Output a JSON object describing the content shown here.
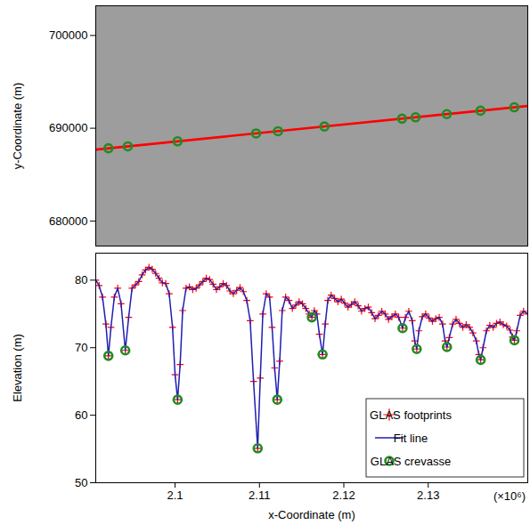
{
  "chart_data": [
    {
      "type": "scatter",
      "ylabel": "y-Coordinate (m)",
      "xlim": [
        2090600,
        2141800
      ],
      "ylim": [
        677300,
        703200
      ],
      "yticks": [
        680000,
        690000,
        700000
      ],
      "tick_labels": "y",
      "grid": false,
      "series": [
        {
          "type": "line",
          "color": "#ff0000",
          "x": [
            2090600,
            2141800
          ],
          "values": [
            687700,
            692400
          ]
        },
        {
          "type": "scatter",
          "color": "#228b22",
          "marker": "circle",
          "x": [
            2092100,
            2094400,
            2100300,
            2109600,
            2112200,
            2117700,
            2126900,
            2128500,
            2132200,
            2136200,
            2140200
          ],
          "values": [
            687840,
            688050,
            688590,
            689440,
            689680,
            690190,
            691030,
            691180,
            691520,
            691890,
            692260
          ]
        }
      ]
    },
    {
      "type": "line",
      "xlabel": "x-Coordinate (m)",
      "ylabel": "Elevation (m)",
      "annotations": [
        "(×10⁶)"
      ],
      "xlim": [
        2090600,
        2141800
      ],
      "ylim": [
        50,
        84
      ],
      "xticks": [
        {
          "value": 2100000,
          "label": "2.1"
        },
        {
          "value": 2110000,
          "label": "2.11"
        },
        {
          "value": 2120000,
          "label": "2.12"
        },
        {
          "value": 2130000,
          "label": "2.13"
        }
      ],
      "yticks": [
        50,
        60,
        70,
        80
      ],
      "grid": false,
      "legend": "lower right",
      "series": [
        {
          "name": "GLAS footprints",
          "type": "scatter",
          "color": "#ff0000",
          "marker": "plus",
          "x": [
            2090600,
            2091000,
            2091400,
            2091800,
            2092100,
            2092400,
            2092800,
            2093200,
            2093600,
            2094100,
            2094500,
            2094900,
            2095300,
            2095700,
            2096100,
            2096500,
            2096900,
            2097300,
            2097700,
            2098100,
            2098500,
            2098900,
            2099300,
            2099700,
            2100000,
            2100300,
            2100600,
            2100900,
            2101300,
            2101700,
            2102100,
            2102500,
            2102900,
            2103300,
            2103700,
            2104100,
            2104500,
            2104900,
            2105300,
            2105700,
            2106100,
            2106500,
            2106900,
            2107300,
            2107700,
            2108100,
            2108500,
            2108900,
            2109300,
            2109790,
            2110100,
            2110400,
            2110800,
            2111200,
            2111500,
            2111800,
            2112110,
            2112400,
            2112700,
            2113100,
            2113500,
            2113900,
            2114300,
            2114700,
            2115100,
            2115500,
            2115900,
            2116210,
            2116500,
            2116800,
            2117100,
            2117480,
            2117800,
            2118100,
            2118500,
            2118900,
            2119300,
            2119700,
            2120100,
            2120500,
            2120900,
            2121300,
            2121700,
            2122100,
            2122500,
            2122900,
            2123300,
            2123700,
            2124100,
            2124500,
            2124900,
            2125300,
            2125700,
            2126100,
            2126500,
            2126960,
            2127300,
            2127700,
            2128100,
            2128400,
            2128640,
            2128900,
            2129300,
            2129700,
            2130100,
            2130500,
            2130900,
            2131300,
            2131700,
            2132000,
            2132220,
            2132500,
            2132900,
            2133300,
            2133700,
            2134100,
            2134500,
            2134900,
            2135300,
            2135700,
            2136000,
            2136220,
            2136500,
            2136900,
            2137300,
            2137700,
            2138100,
            2138500,
            2138900,
            2139300,
            2139700,
            2140000,
            2140220,
            2140500,
            2140900,
            2141300,
            2141800
          ],
          "values": [
            80.0,
            79.2,
            77.5,
            73.5,
            68.8,
            73.0,
            77.5,
            78.8,
            76.5,
            69.6,
            74.5,
            78.8,
            79.3,
            79.8,
            80.8,
            81.5,
            81.9,
            81.6,
            81.0,
            80.3,
            79.6,
            79.5,
            78.0,
            73.0,
            66.0,
            62.3,
            67.5,
            75.5,
            78.8,
            79.0,
            78.6,
            78.8,
            79.3,
            79.8,
            80.3,
            80.1,
            79.4,
            78.6,
            79.0,
            79.5,
            79.2,
            78.4,
            78.0,
            78.5,
            78.9,
            78.3,
            77.0,
            74.0,
            65.0,
            55.1,
            65.5,
            75.0,
            78.0,
            77.5,
            73.0,
            67.0,
            62.3,
            68.0,
            75.5,
            77.5,
            77.0,
            75.8,
            76.3,
            76.8,
            76.5,
            75.8,
            75.0,
            74.5,
            75.5,
            75.0,
            72.0,
            69.0,
            73.5,
            77.0,
            77.8,
            77.3,
            76.8,
            77.2,
            76.6,
            76.0,
            76.4,
            76.8,
            76.2,
            75.4,
            75.8,
            76.0,
            75.2,
            74.3,
            74.8,
            75.4,
            75.0,
            74.2,
            74.6,
            75.0,
            74.5,
            72.9,
            74.5,
            75.4,
            74.0,
            71.0,
            69.8,
            72.5,
            74.6,
            75.0,
            74.4,
            73.9,
            74.3,
            74.5,
            73.5,
            71.0,
            70.1,
            71.5,
            73.5,
            74.2,
            73.6,
            73.0,
            73.4,
            73.0,
            72.2,
            71.0,
            69.0,
            68.2,
            70.0,
            72.5,
            73.3,
            73.0,
            73.6,
            73.8,
            73.4,
            73.2,
            72.6,
            71.6,
            71.1,
            72.5,
            74.8,
            75.4,
            75.0
          ]
        },
        {
          "name": "Fit line",
          "type": "line",
          "color": "#1f1fb4",
          "x": [
            2090600,
            2091000,
            2091400,
            2091800,
            2092100,
            2092400,
            2092800,
            2093200,
            2093600,
            2094100,
            2094500,
            2094900,
            2095300,
            2095700,
            2096100,
            2096500,
            2096900,
            2097300,
            2097700,
            2098100,
            2098500,
            2098900,
            2099300,
            2099700,
            2100000,
            2100300,
            2100600,
            2100900,
            2101300,
            2101700,
            2102100,
            2102500,
            2102900,
            2103300,
            2103700,
            2104100,
            2104500,
            2104900,
            2105300,
            2105700,
            2106100,
            2106500,
            2106900,
            2107300,
            2107700,
            2108100,
            2108500,
            2108900,
            2109300,
            2109790,
            2110100,
            2110400,
            2110800,
            2111200,
            2111500,
            2111800,
            2112110,
            2112400,
            2112700,
            2113100,
            2113500,
            2113900,
            2114300,
            2114700,
            2115100,
            2115500,
            2115900,
            2116210,
            2116500,
            2116800,
            2117100,
            2117480,
            2117800,
            2118100,
            2118500,
            2118900,
            2119300,
            2119700,
            2120100,
            2120500,
            2120900,
            2121300,
            2121700,
            2122100,
            2122500,
            2122900,
            2123300,
            2123700,
            2124100,
            2124500,
            2124900,
            2125300,
            2125700,
            2126100,
            2126500,
            2126960,
            2127300,
            2127700,
            2128100,
            2128400,
            2128640,
            2128900,
            2129300,
            2129700,
            2130100,
            2130500,
            2130900,
            2131300,
            2131700,
            2132000,
            2132220,
            2132500,
            2132900,
            2133300,
            2133700,
            2134100,
            2134500,
            2134900,
            2135300,
            2135700,
            2136000,
            2136220,
            2136500,
            2136900,
            2137300,
            2137700,
            2138100,
            2138500,
            2138900,
            2139300,
            2139700,
            2140000,
            2140220,
            2140500,
            2140900,
            2141300,
            2141800
          ],
          "values": [
            80.0,
            79.2,
            77.5,
            73.5,
            68.8,
            73.0,
            77.5,
            78.8,
            76.5,
            69.6,
            74.5,
            78.8,
            79.3,
            79.8,
            80.8,
            81.5,
            81.9,
            81.6,
            81.0,
            80.3,
            79.6,
            79.5,
            78.0,
            73.0,
            66.0,
            62.3,
            67.5,
            75.5,
            78.8,
            79.0,
            78.6,
            78.8,
            79.3,
            79.8,
            80.3,
            80.1,
            79.4,
            78.6,
            79.0,
            79.5,
            79.2,
            78.4,
            78.0,
            78.5,
            78.9,
            78.3,
            77.0,
            74.0,
            65.0,
            55.1,
            65.5,
            75.0,
            78.0,
            77.5,
            73.0,
            67.0,
            62.3,
            68.0,
            75.5,
            77.5,
            77.0,
            75.8,
            76.3,
            76.8,
            76.5,
            75.8,
            75.0,
            74.5,
            75.5,
            75.0,
            72.0,
            69.0,
            73.5,
            77.0,
            77.8,
            77.3,
            76.8,
            77.2,
            76.6,
            76.0,
            76.4,
            76.8,
            76.2,
            75.4,
            75.8,
            76.0,
            75.2,
            74.3,
            74.8,
            75.4,
            75.0,
            74.2,
            74.6,
            75.0,
            74.5,
            72.9,
            74.5,
            75.4,
            74.0,
            71.0,
            69.8,
            72.5,
            74.6,
            75.0,
            74.4,
            73.9,
            74.3,
            74.5,
            73.5,
            71.0,
            70.1,
            71.5,
            73.5,
            74.2,
            73.6,
            73.0,
            73.4,
            73.0,
            72.2,
            71.0,
            69.0,
            68.2,
            70.0,
            72.5,
            73.3,
            73.0,
            73.6,
            73.8,
            73.4,
            73.2,
            72.6,
            71.6,
            71.1,
            72.5,
            74.8,
            75.4,
            75.0
          ]
        },
        {
          "name": "GLAS crevasse",
          "type": "scatter",
          "color": "#228b22",
          "marker": "circle",
          "x": [
            2092100,
            2094100,
            2100300,
            2109790,
            2112110,
            2116210,
            2117480,
            2126960,
            2128640,
            2132220,
            2136220,
            2140220
          ],
          "values": [
            68.8,
            69.6,
            62.3,
            55.1,
            62.3,
            74.5,
            69.0,
            72.9,
            69.8,
            70.1,
            68.2,
            71.1
          ]
        }
      ]
    }
  ]
}
